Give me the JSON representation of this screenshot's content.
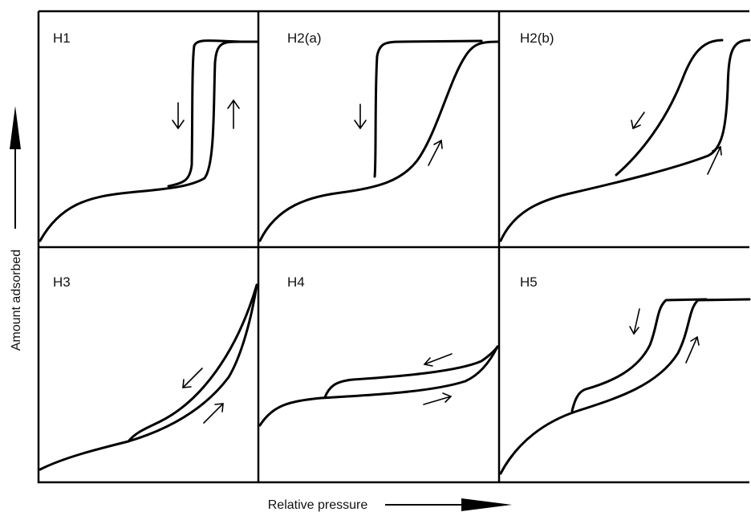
{
  "figure": {
    "y_axis_label": "Amount adsorbed",
    "x_axis_label": "Relative pressure",
    "panels": [
      {
        "id": "h1",
        "label": "H1"
      },
      {
        "id": "h2a",
        "label": "H2(a)"
      },
      {
        "id": "h2b",
        "label": "H2(b)"
      },
      {
        "id": "h3",
        "label": "H3"
      },
      {
        "id": "h4",
        "label": "H4"
      },
      {
        "id": "h5",
        "label": "H5"
      }
    ]
  }
}
